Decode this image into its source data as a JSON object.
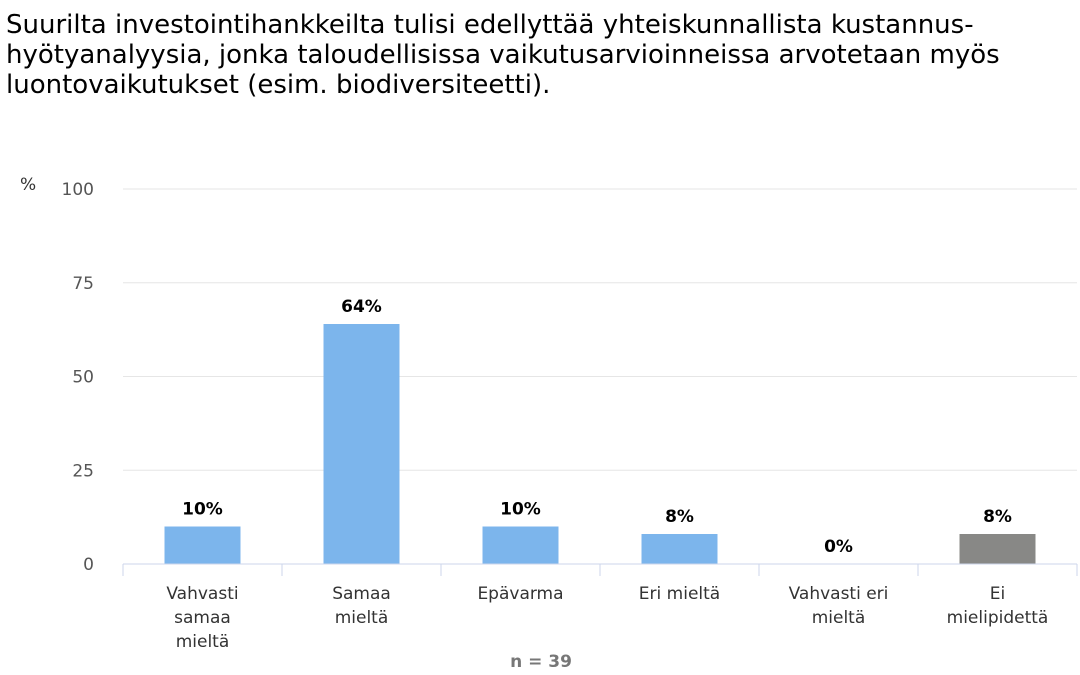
{
  "chart_data": {
    "type": "bar",
    "title": "Suurilta investointihankkeilta tulisi edellyttää yhteiskunnallista kustannus-hyötyanalyysia, jonka taloudellisissa vaikutusarvioinneissa arvotetaan myös luontovaikutukset (esim. biodiversiteetti).",
    "ylabel": "%",
    "ylim": [
      0,
      100
    ],
    "yticks": [
      0,
      25,
      50,
      75,
      100
    ],
    "grid": true,
    "categories": [
      [
        "Vahvasti",
        "samaa",
        "mieltä"
      ],
      [
        "Samaa",
        "mieltä"
      ],
      [
        "Epävarma"
      ],
      [
        "Eri mieltä"
      ],
      [
        "Vahvasti eri",
        "mieltä"
      ],
      [
        "Ei",
        "mielipidettä"
      ]
    ],
    "values": [
      10,
      64,
      10,
      8,
      0,
      8
    ],
    "data_labels": [
      "10%",
      "64%",
      "10%",
      "8%",
      "0%",
      "8%"
    ],
    "colors": [
      "#7cb5ec",
      "#7cb5ec",
      "#7cb5ec",
      "#7cb5ec",
      "#7cb5ec",
      "#888886"
    ],
    "note": "n = 39"
  }
}
